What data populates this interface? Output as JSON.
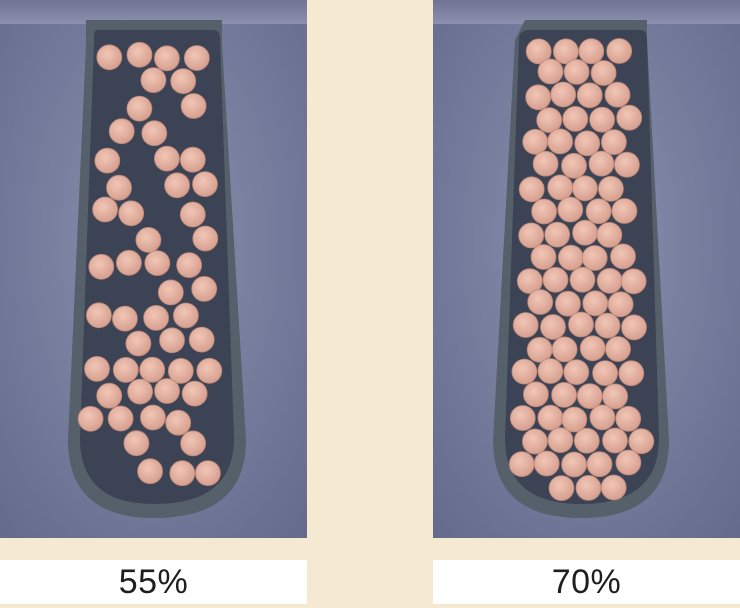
{
  "panels": [
    {
      "fill_factor": "55%",
      "conductor_count": 52
    },
    {
      "fill_factor": "70%",
      "conductor_count": 86
    }
  ],
  "colors": {
    "page_background": "#f6e9d1",
    "photo_background": "#7f86a5",
    "slot_insulation": "#566068",
    "slot_interior": "#3b4355",
    "conductor_copper": "#e4b2a2",
    "caption_background": "#ffffff"
  }
}
